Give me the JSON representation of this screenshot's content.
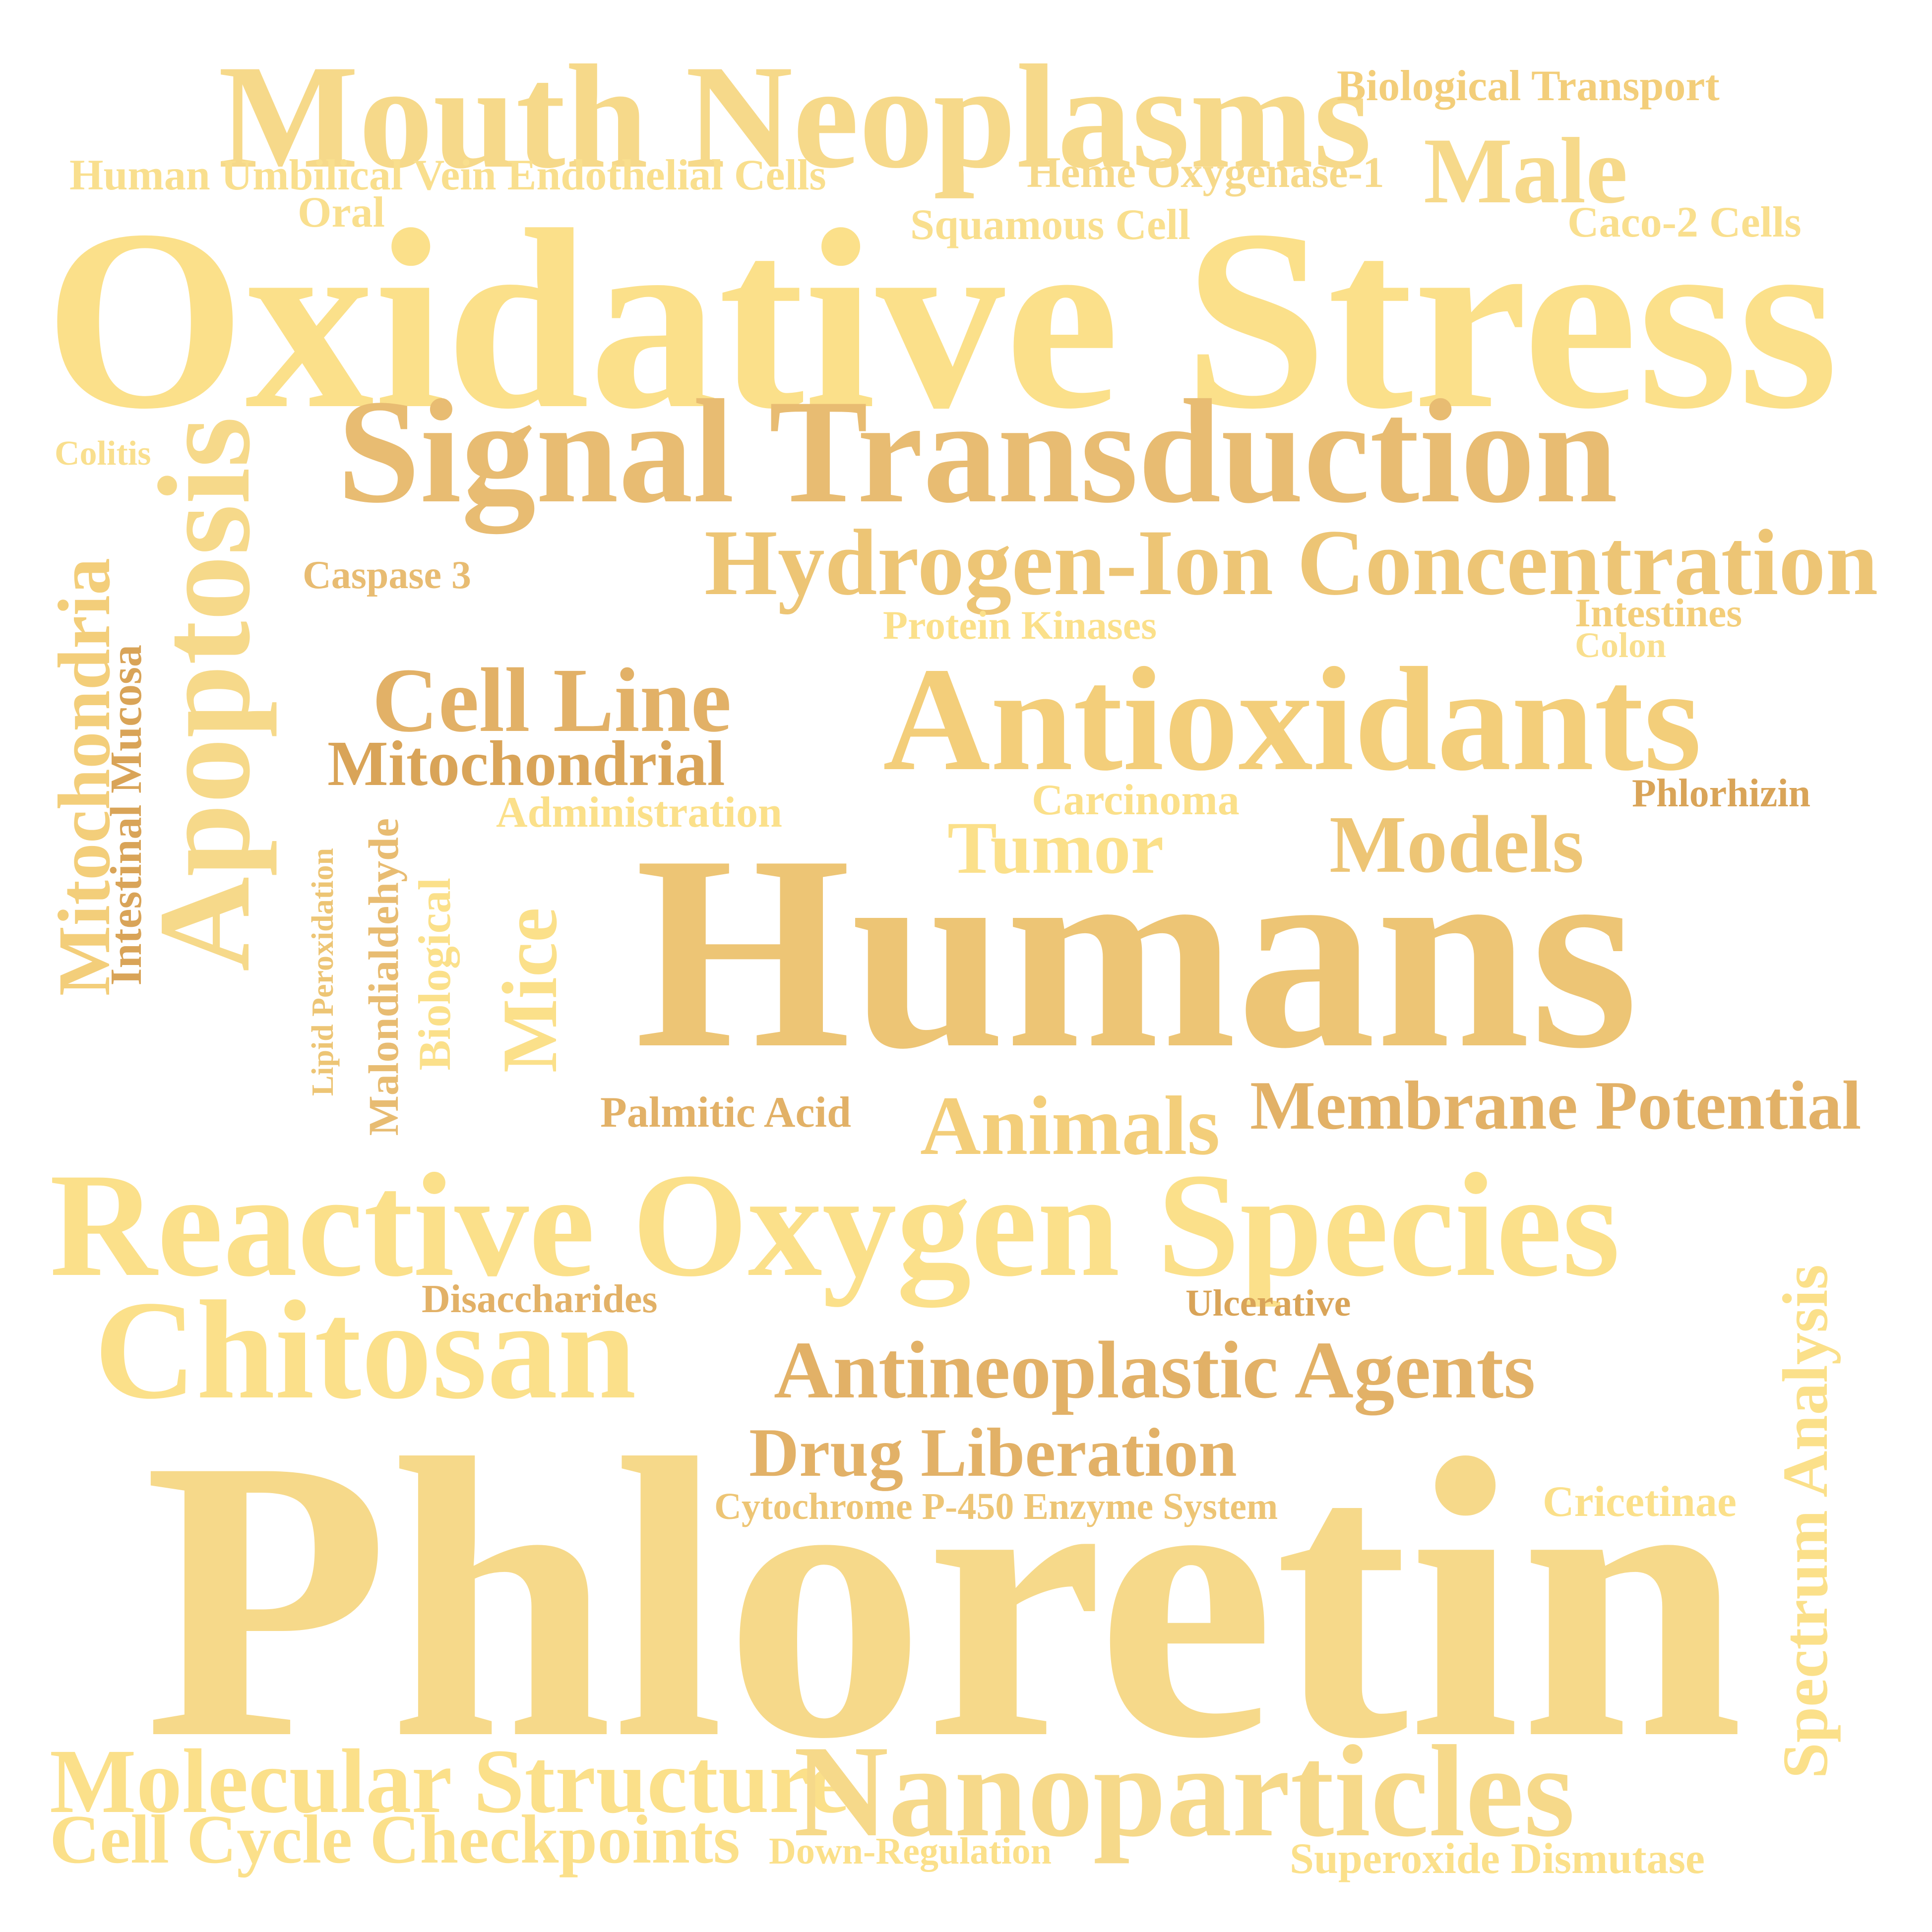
{
  "words": {
    "mouth_neoplasms": "Mouth Neoplasms",
    "biological_transport": "Biological Transport",
    "huvec": "Human Umbilical Vein Endothelial Cells",
    "heme_oxygenase": "Heme Oxygenase-1",
    "male": "Male",
    "oral": "Oral",
    "squamous_cell": "Squamous Cell",
    "caco2": "Caco-2 Cells",
    "oxidative_stress": "Oxidative Stress",
    "colitis": "Colitis",
    "signal_transduction": "Signal Transduction",
    "apoptosis": "Apoptosis",
    "hydrogen_ion": "Hydrogen-Ion Concentration",
    "caspase3": "Caspase 3",
    "intestines": "Intestines",
    "protein_kinases": "Protein Kinases",
    "colon": "Colon",
    "mitochondria": "Mitochondria",
    "intestinal_mucosa": "Intestinal Mucosa",
    "cell_line": "Cell Line",
    "antioxidants": "Antioxidants",
    "mitochondrial": "Mitochondrial",
    "administration": "Administration",
    "carcinoma": "Carcinoma",
    "phlorhizin": "Phlorhizin",
    "tumor": "Tumor",
    "models": "Models",
    "lipid_peroxidation": "Lipid Peroxidation",
    "malondialdehyde": "Malondialdehyde",
    "biological": "Biological",
    "mice": "Mice",
    "humans": "Humans",
    "palmitic_acid": "Palmitic Acid",
    "animals": "Animals",
    "membrane_potential": "Membrane Potential",
    "reactive_oxygen_species": "Reactive Oxygen Species",
    "disaccharides": "Disaccharides",
    "ulcerative": "Ulcerative",
    "chitosan": "Chitosan",
    "antineoplastic_agents": "Antineoplastic Agents",
    "spectrum_analysis": "Spectrum Analysis",
    "drug_liberation": "Drug Liberation",
    "cytochrome": "Cytochrome P-450 Enzyme System",
    "cricetinae": "Cricetinae",
    "phloretin": "Phloretin",
    "molecular_structure": "Molecular Structure",
    "nanoparticles": "Nanoparticles",
    "cell_cycle_checkpoints": "Cell Cycle Checkpoints",
    "down_regulation": "Down-Regulation",
    "superoxide_dismutase": "Superoxide Dismutase"
  },
  "colors": {
    "light": "#FBE08A",
    "pale": "#F9DF8E",
    "soft": "#F6D98A",
    "gold": "#F3CE7A",
    "mid": "#EDC575",
    "tan": "#E8BC72",
    "deep": "#E2B167",
    "dark": "#D9A458",
    "background": "#FFFFFF"
  }
}
